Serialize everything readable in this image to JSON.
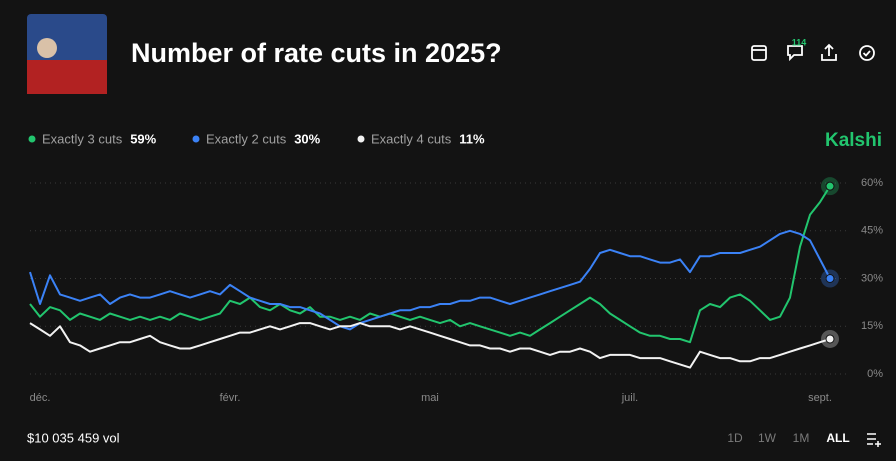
{
  "header": {
    "title": "Number of rate cuts in 2025?",
    "comment_count": 114,
    "brand": "Kalshi"
  },
  "chart_data": {
    "type": "line",
    "categories": [
      null,
      "déc.",
      null,
      null,
      null,
      null,
      null,
      null,
      null,
      null,
      null,
      null,
      null,
      null,
      null,
      null,
      null,
      null,
      null,
      null,
      "févr.",
      null,
      null,
      null,
      null,
      null,
      null,
      null,
      null,
      null,
      null,
      null,
      null,
      null,
      null,
      null,
      null,
      null,
      null,
      null,
      "mai",
      null,
      null,
      null,
      null,
      null,
      null,
      null,
      null,
      null,
      null,
      null,
      null,
      null,
      null,
      null,
      null,
      null,
      null,
      null,
      "juil.",
      null,
      null,
      null,
      null,
      null,
      null,
      null,
      null,
      null,
      null,
      null,
      null,
      null,
      null,
      null,
      null,
      null,
      null,
      "sept.",
      null
    ],
    "series": [
      {
        "name": "Exactly 3 cuts",
        "current_label": "59%",
        "color": "#22c56e",
        "values": [
          22,
          18,
          21,
          20,
          17,
          19,
          18,
          17,
          19,
          18,
          17,
          18,
          17,
          18,
          17,
          19,
          18,
          17,
          18,
          19,
          23,
          22,
          24,
          21,
          20,
          22,
          20,
          19,
          21,
          18,
          18,
          17,
          18,
          17,
          19,
          18,
          19,
          18,
          17,
          18,
          17,
          16,
          17,
          15,
          16,
          15,
          14,
          13,
          12,
          13,
          12,
          14,
          16,
          18,
          20,
          22,
          24,
          22,
          19,
          17,
          15,
          13,
          12,
          12,
          11,
          11,
          10,
          20,
          22,
          21,
          24,
          25,
          23,
          20,
          17,
          18,
          24,
          40,
          50,
          54,
          59
        ]
      },
      {
        "name": "Exactly 2 cuts",
        "current_label": "30%",
        "color": "#3b82f6",
        "values": [
          32,
          22,
          31,
          25,
          24,
          23,
          24,
          25,
          22,
          24,
          25,
          24,
          24,
          25,
          26,
          25,
          24,
          25,
          26,
          25,
          28,
          26,
          24,
          23,
          22,
          22,
          21,
          21,
          20,
          19,
          17,
          15,
          14,
          16,
          17,
          18,
          19,
          20,
          20,
          21,
          21,
          22,
          22,
          23,
          23,
          24,
          24,
          23,
          22,
          23,
          24,
          25,
          26,
          27,
          28,
          29,
          33,
          38,
          39,
          38,
          37,
          37,
          36,
          35,
          35,
          36,
          32,
          37,
          37,
          38,
          38,
          38,
          39,
          40,
          42,
          44,
          45,
          44,
          42,
          36,
          30
        ]
      },
      {
        "name": "Exactly 4 cuts",
        "current_label": "11%",
        "color": "#f2f2f2",
        "values": [
          16,
          14,
          12,
          15,
          10,
          9,
          7,
          8,
          9,
          10,
          10,
          11,
          12,
          10,
          9,
          8,
          8,
          9,
          10,
          11,
          12,
          13,
          13,
          14,
          15,
          14,
          15,
          16,
          16,
          15,
          14,
          15,
          15,
          16,
          15,
          15,
          15,
          14,
          15,
          14,
          13,
          12,
          11,
          10,
          9,
          9,
          8,
          8,
          7,
          8,
          8,
          7,
          6,
          7,
          7,
          8,
          7,
          5,
          6,
          6,
          6,
          5,
          5,
          5,
          4,
          3,
          2,
          7,
          6,
          5,
          5,
          4,
          4,
          5,
          5,
          6,
          7,
          8,
          9,
          10,
          11
        ]
      }
    ],
    "ylim": [
      0,
      60
    ],
    "yticks": [
      {
        "value": 0,
        "label": "0%"
      },
      {
        "value": 15,
        "label": "15%"
      },
      {
        "value": 30,
        "label": "30%"
      },
      {
        "value": 45,
        "label": "45%"
      },
      {
        "value": 60,
        "label": "60%"
      }
    ],
    "grid": true
  },
  "footer": {
    "volume": "$10 035 459 vol",
    "ranges": [
      "1D",
      "1W",
      "1M",
      "ALL"
    ],
    "active_range": "ALL"
  }
}
